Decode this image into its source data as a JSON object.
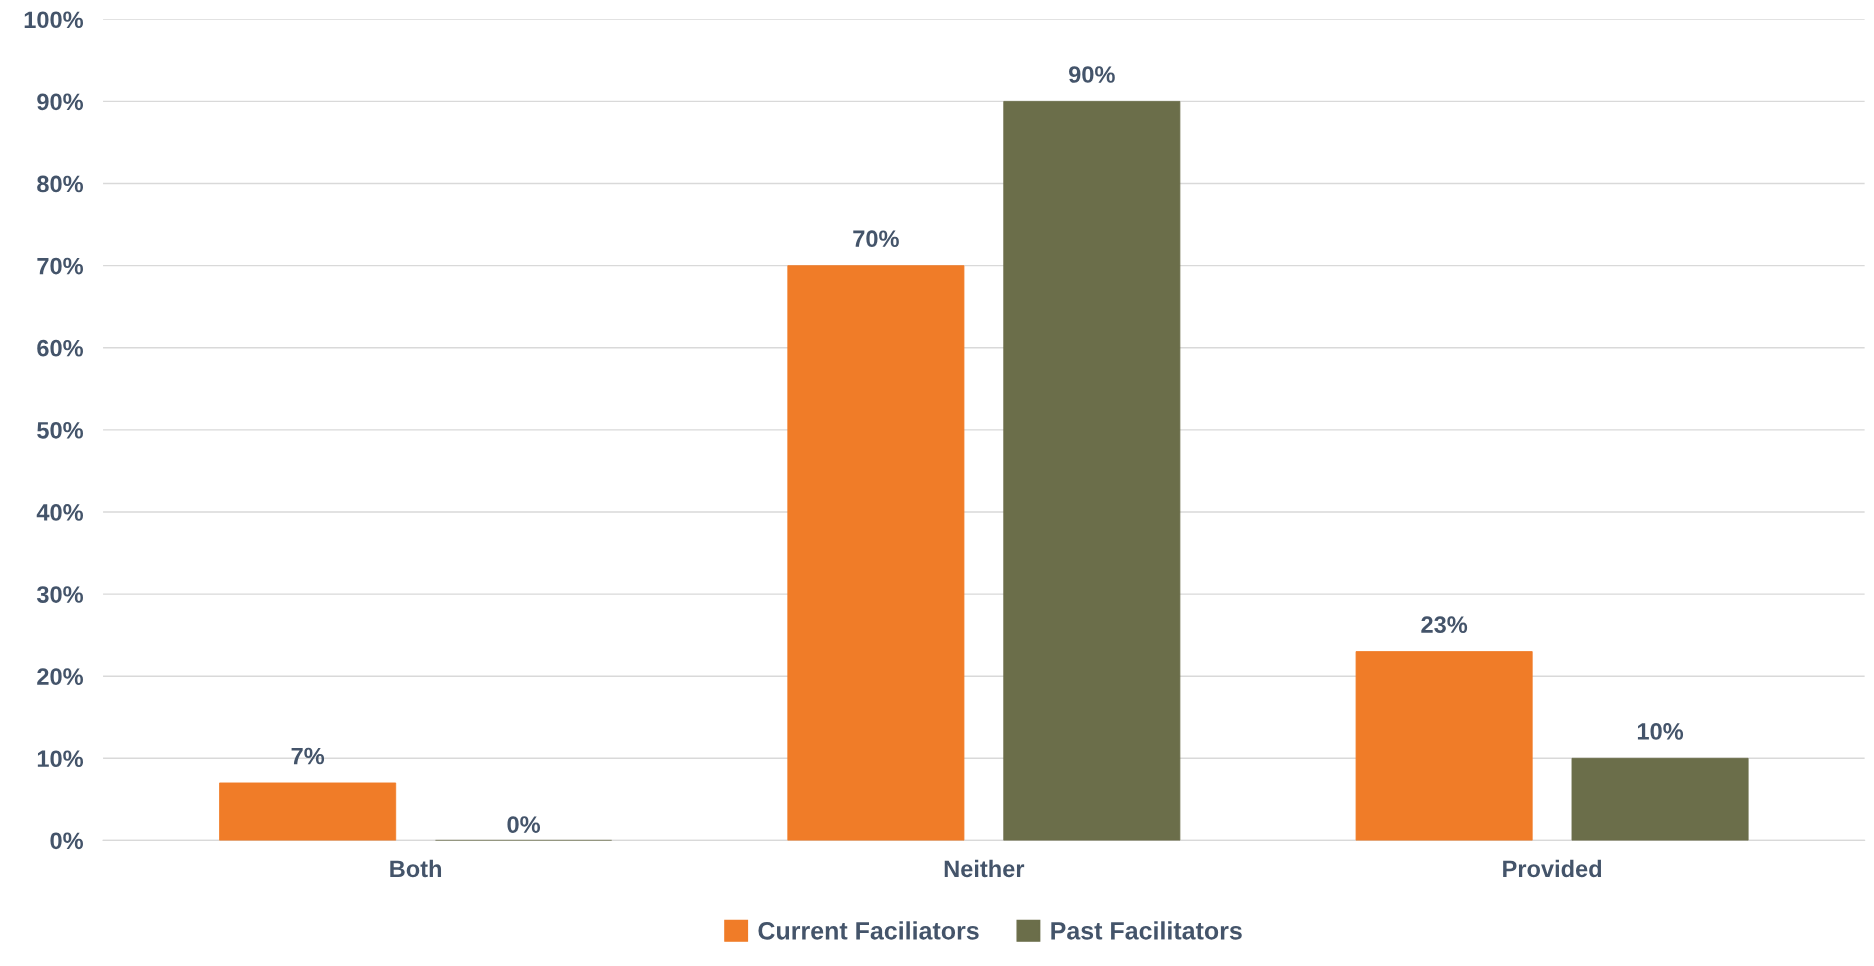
{
  "chart_data": {
    "type": "bar",
    "categories": [
      "Both",
      "Neither",
      "Provided"
    ],
    "series": [
      {
        "name": "Current Faciliators",
        "color": "#f07c28",
        "values": [
          7,
          70,
          23
        ],
        "value_labels": [
          "7%",
          "70%",
          "23%"
        ]
      },
      {
        "name": "Past Facilitators",
        "color": "#6b6e4a",
        "values": [
          0,
          90,
          10
        ],
        "value_labels": [
          "0%",
          "90%",
          "10%"
        ]
      }
    ],
    "ylim": [
      0,
      100
    ],
    "yticks": [
      {
        "value": 0,
        "label": "0%"
      },
      {
        "value": 10,
        "label": "10%"
      },
      {
        "value": 20,
        "label": "20%"
      },
      {
        "value": 30,
        "label": "30%"
      },
      {
        "value": 40,
        "label": "40%"
      },
      {
        "value": 50,
        "label": "50%"
      },
      {
        "value": 60,
        "label": "60%"
      },
      {
        "value": 70,
        "label": "70%"
      },
      {
        "value": 80,
        "label": "80%"
      },
      {
        "value": 90,
        "label": "90%"
      },
      {
        "value": 100,
        "label": "100%"
      }
    ],
    "grid": "y",
    "legend": "bottom"
  }
}
